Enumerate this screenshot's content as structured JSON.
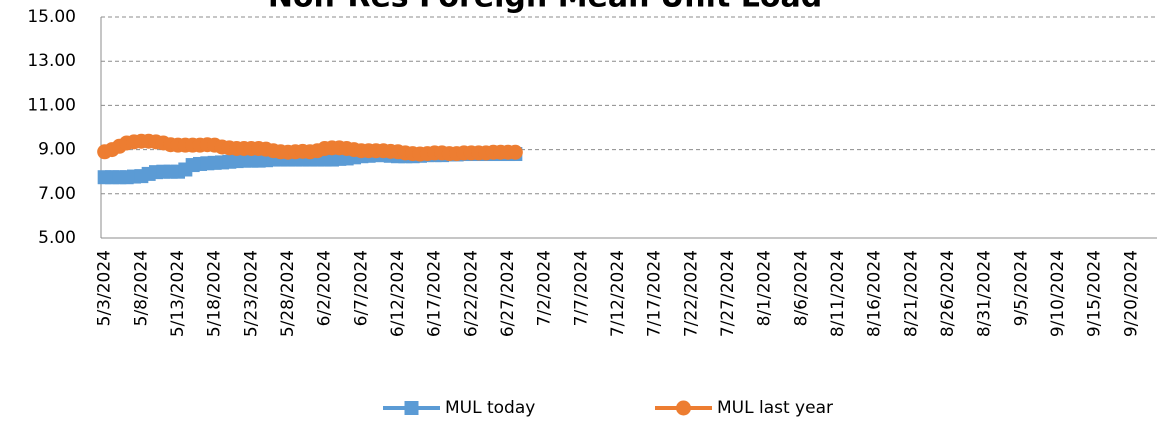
{
  "chart_data": {
    "type": "line",
    "title": "Non-Res Foreign Mean Unit Load",
    "categories": [
      "5/3/2024",
      null,
      null,
      null,
      null,
      "5/8/2024",
      null,
      null,
      null,
      null,
      "5/13/2024",
      null,
      null,
      null,
      null,
      "5/18/2024",
      null,
      null,
      null,
      null,
      "5/23/2024",
      null,
      null,
      null,
      null,
      "5/28/2024",
      null,
      null,
      null,
      null,
      "6/2/2024",
      null,
      null,
      null,
      null,
      "6/7/2024",
      null,
      null,
      null,
      null,
      "6/12/2024",
      null,
      null,
      null,
      null,
      "6/17/2024",
      null,
      null,
      null,
      null,
      "6/22/2024",
      null,
      null,
      null,
      null,
      "6/27/2024",
      null,
      null,
      null,
      null,
      "7/2/2024",
      null,
      null,
      null,
      null,
      "7/7/2024",
      null,
      null,
      null,
      null,
      "7/12/2024",
      null,
      null,
      null,
      null,
      "7/17/2024",
      null,
      null,
      null,
      null,
      "7/22/2024",
      null,
      null,
      null,
      null,
      "7/27/2024",
      null,
      null,
      null,
      null,
      "8/1/2024",
      null,
      null,
      null,
      null,
      "8/6/2024",
      null,
      null,
      null,
      null,
      "8/11/2024",
      null,
      null,
      null,
      null,
      "8/16/2024",
      null,
      null,
      null,
      null,
      "8/21/2024",
      null,
      null,
      null,
      null,
      "8/26/2024",
      null,
      null,
      null,
      null,
      "8/31/2024",
      null,
      null,
      null,
      null,
      "9/5/2024",
      null,
      null,
      null,
      null,
      "9/10/2024",
      null,
      null,
      null,
      null,
      "9/15/2024",
      null,
      null,
      null,
      null,
      "9/20/2024",
      null,
      null,
      null
    ],
    "series": [
      {
        "name": "MUL today",
        "color": "#5b9bd5",
        "marker": "square",
        "values": [
          7.75,
          7.75,
          7.75,
          7.75,
          7.78,
          7.8,
          7.9,
          7.98,
          8.0,
          8.0,
          8.0,
          8.1,
          8.3,
          8.35,
          8.38,
          8.4,
          8.42,
          8.45,
          8.48,
          8.5,
          8.5,
          8.5,
          8.52,
          8.55,
          8.55,
          8.55,
          8.55,
          8.55,
          8.55,
          8.55,
          8.55,
          8.55,
          8.58,
          8.6,
          8.65,
          8.7,
          8.72,
          8.75,
          8.75,
          8.72,
          8.7,
          8.7,
          8.7,
          8.72,
          8.75,
          8.75,
          8.75,
          8.78,
          8.78,
          8.8,
          8.8,
          8.8,
          8.8,
          8.8,
          8.8,
          8.8,
          8.8,
          null,
          null,
          null,
          null,
          null,
          null,
          null,
          null,
          null,
          null,
          null,
          null,
          null,
          null,
          null,
          null,
          null,
          null,
          null,
          null,
          null,
          null,
          null,
          null,
          null,
          null,
          null,
          null,
          null,
          null,
          null,
          null,
          null,
          null,
          null,
          null,
          null,
          null,
          null,
          null,
          null,
          null,
          null,
          null,
          null,
          null,
          null,
          null,
          null,
          null,
          null,
          null,
          null,
          null,
          null,
          null,
          null,
          null,
          null,
          null,
          null,
          null,
          null,
          null,
          null,
          null,
          null,
          null,
          null,
          null,
          null,
          null,
          null,
          null,
          null,
          null,
          null,
          null,
          null,
          null,
          null,
          null,
          null,
          null,
          null,
          null,
          null
        ]
      },
      {
        "name": "MUL last year",
        "color": "#ed7d31",
        "marker": "circle",
        "values": [
          8.9,
          9.0,
          9.15,
          9.3,
          9.35,
          9.38,
          9.38,
          9.35,
          9.3,
          9.22,
          9.2,
          9.2,
          9.2,
          9.2,
          9.22,
          9.2,
          9.12,
          9.08,
          9.05,
          9.05,
          9.05,
          9.05,
          9.02,
          8.95,
          8.9,
          8.88,
          8.9,
          8.92,
          8.9,
          8.95,
          9.05,
          9.08,
          9.08,
          9.05,
          9.0,
          8.95,
          8.95,
          8.95,
          8.95,
          8.92,
          8.9,
          8.85,
          8.82,
          8.8,
          8.82,
          8.85,
          8.85,
          8.82,
          8.82,
          8.85,
          8.85,
          8.85,
          8.85,
          8.88,
          8.88,
          8.88,
          8.88,
          null,
          null,
          null,
          null,
          null,
          null,
          null,
          null,
          null,
          null,
          null,
          null,
          null,
          null,
          null,
          null,
          null,
          null,
          null,
          null,
          null,
          null,
          null,
          null,
          null,
          null,
          null,
          null,
          null,
          null,
          null,
          null,
          null,
          null,
          null,
          null,
          null,
          null,
          null,
          null,
          null,
          null,
          null,
          null,
          null,
          null,
          null,
          null,
          null,
          null,
          null,
          null,
          null,
          null,
          null,
          null,
          null,
          null,
          null,
          null,
          null,
          null,
          null,
          null,
          null,
          null,
          null,
          null,
          null,
          null,
          null,
          null,
          null,
          null,
          null,
          null,
          null,
          null,
          null,
          null,
          null,
          null,
          null,
          null,
          null,
          null,
          null
        ]
      }
    ],
    "ylim": [
      5,
      15
    ],
    "yticks": [
      {
        "value": 5,
        "label": "5.00"
      },
      {
        "value": 7,
        "label": "7.00"
      },
      {
        "value": 9,
        "label": "9.00"
      },
      {
        "value": 11,
        "label": "11.00"
      },
      {
        "value": 13,
        "label": "13.00"
      },
      {
        "value": 15,
        "label": "15.00"
      }
    ],
    "grid": true,
    "legend": "bottom"
  }
}
